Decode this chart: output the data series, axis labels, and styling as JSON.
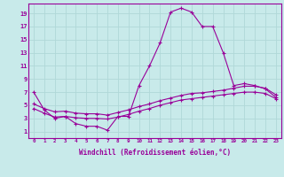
{
  "x": [
    0,
    1,
    2,
    3,
    4,
    5,
    6,
    7,
    8,
    9,
    10,
    11,
    12,
    13,
    14,
    15,
    16,
    17,
    18,
    19,
    20,
    21,
    22,
    23
  ],
  "line1": [
    7.0,
    4.3,
    3.0,
    3.3,
    2.2,
    1.8,
    1.8,
    1.2,
    3.3,
    3.3,
    8.0,
    11.0,
    14.5,
    19.2,
    19.8,
    19.2,
    17.0,
    17.0,
    13.0,
    8.0,
    8.3,
    8.0,
    7.5,
    6.2
  ],
  "line2": [
    4.5,
    3.8,
    3.2,
    3.3,
    3.1,
    3.0,
    3.0,
    2.9,
    3.2,
    3.6,
    4.1,
    4.5,
    5.0,
    5.4,
    5.8,
    6.0,
    6.2,
    6.4,
    6.6,
    6.8,
    7.0,
    7.0,
    6.8,
    6.0
  ],
  "line3": [
    5.2,
    4.5,
    4.0,
    4.1,
    3.8,
    3.7,
    3.7,
    3.5,
    3.9,
    4.3,
    4.8,
    5.2,
    5.7,
    6.1,
    6.5,
    6.8,
    6.9,
    7.1,
    7.3,
    7.6,
    7.9,
    7.9,
    7.6,
    6.6
  ],
  "line_color": "#990099",
  "bg_color": "#c8eaea",
  "grid_color": "#b0d8d8",
  "xlabel": "Windchill (Refroidissement éolien,°C)",
  "yticks": [
    1,
    3,
    5,
    7,
    9,
    11,
    13,
    15,
    17,
    19
  ],
  "ylim": [
    0.0,
    20.5
  ],
  "xlim": [
    -0.5,
    23.5
  ]
}
